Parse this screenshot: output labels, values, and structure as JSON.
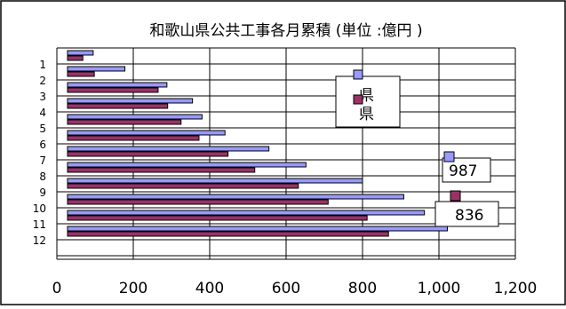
{
  "chart_data": {
    "type": "bar",
    "orientation": "horizontal",
    "title": "和歌山県公共工事各月累積 (単位 :億円 )",
    "categories": [
      "1",
      "2",
      "3",
      "4",
      "5",
      "6",
      "7",
      "8",
      "9",
      "10",
      "11",
      "12"
    ],
    "series": [
      {
        "name": "県",
        "color": "#9999ff",
        "values": [
          95,
          178,
          288,
          355,
          380,
          440,
          555,
          652,
          800,
          908,
          962,
          1022
        ]
      },
      {
        "name": "県",
        "color": "#993366",
        "values": [
          68,
          98,
          265,
          290,
          325,
          372,
          448,
          518,
          632,
          710,
          812,
          868
        ]
      }
    ],
    "xlim": [
      0,
      1200
    ],
    "x_ticks": [
      "0",
      "200",
      "400",
      "600",
      "800",
      "1,000",
      "1,200"
    ],
    "grid": true,
    "legend": {
      "position": "top-right",
      "entries": [
        "県",
        "県"
      ]
    },
    "annotations": [
      {
        "value": "987",
        "series": 0
      },
      {
        "value": "836",
        "series": 1
      }
    ]
  }
}
